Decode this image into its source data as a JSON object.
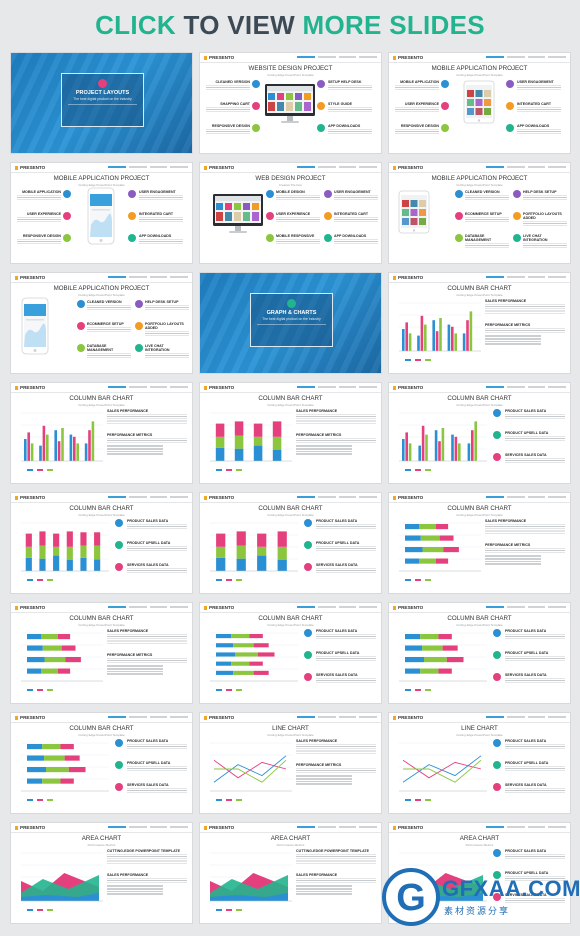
{
  "header": {
    "part1": "CLICK",
    "part2": "TO VIEW",
    "part3": "MORE SLIDES"
  },
  "brand": "PRESENTO",
  "colors": {
    "green": "#22b48e",
    "blue": "#2b8fd3",
    "pink": "#e5407e",
    "lime": "#8cc63f",
    "purple": "#8a5cc2",
    "orange": "#f39c24",
    "dark": "#3c4a55"
  },
  "slides": [
    {
      "type": "cover",
      "title": "PROJECT LAYOUTS",
      "subtitle": "The best digital product on the industry",
      "icon_color": "#e5407e"
    },
    {
      "type": "devices",
      "title": "WEBSITE DESIGN PROJECT",
      "subtitle": "Cutting Edge PowerPoint Template",
      "device": "monitor",
      "left": [
        "CLEANED VERSION",
        "SHAPPING CART",
        "RESPONSIVE DESIGN"
      ],
      "right": [
        "SETUP HELP DESK",
        "STYLE GUIDE",
        "APP DOWNLOADS"
      ]
    },
    {
      "type": "devices",
      "title": "MOBILE APPLICATION PROJECT",
      "subtitle": "Cutting Edge PowerPoint Template",
      "device": "tablet",
      "left": [
        "MOBILE APPLICATION",
        "USER EXPERIENCE",
        "RESPONSIVE DESIGN"
      ],
      "right": [
        "USER ENGAGEMENT",
        "INTEGRATED CART",
        "APP DOWNLOADS"
      ]
    },
    {
      "type": "devices",
      "title": "MOBILE APPLICATION PROJECT",
      "subtitle": "Cutting Edge PowerPoint Template",
      "device": "phone-center",
      "left": [
        "MOBILE APPLICATION",
        "USER EXPERIENCE",
        "RESPONSIVE DESIGN"
      ],
      "right": [
        "USER ENGAGEMENT",
        "INTEGRATED CART",
        "APP DOWNLOADS"
      ]
    },
    {
      "type": "devices",
      "title": "WEB DESIGN PROJECT",
      "subtitle": "Creative Tile Item",
      "device": "monitor-left",
      "left": [
        "MOBILE DESIGN",
        "USER EXPERIENCE",
        "MOBILE RESPONSIVE"
      ],
      "right": [
        "USER ENGAGEMENT",
        "INTEGRATED CART",
        "APP DOWNLOADS"
      ]
    },
    {
      "type": "devices",
      "title": "MOBILE APPLICATION PROJECT",
      "subtitle": "Cutting Edge PowerPoint Template",
      "device": "tablet-left",
      "left": [
        "CLEANED VERSION",
        "ECOMMERCE SETUP",
        "DATABASE MANAGEMENT"
      ],
      "right": [
        "HELP DESK SETUP",
        "PORTFOLIO LAYOUTS ADDED",
        "LIVE CHAT INTEGRATION"
      ]
    },
    {
      "type": "devices",
      "title": "MOBILE APPLICATION PROJECT",
      "subtitle": "Cutting Edge PowerPoint Template",
      "device": "phone-left",
      "left": [
        "CLEANED VERSION",
        "ECOMMERCE SETUP",
        "DATABASE MANAGEMENT"
      ],
      "right": [
        "HELP DESK SETUP",
        "PORTFOLIO LAYOUTS ADDED",
        "LIVE CHAT INTEGRATION"
      ]
    },
    {
      "type": "cover",
      "title": "GRAPH & CHARTS",
      "subtitle": "The best digital product on the industry",
      "icon_color": "#22b48e"
    },
    {
      "type": "chart",
      "title": "COLUMN BAR CHART",
      "subtitle": "Cutting Edge PowerPoint Template",
      "chart": "grouped",
      "side": "right",
      "heads": [
        "SALES PERFORMANCE",
        "PERFORMANCE METRICS"
      ]
    },
    {
      "type": "chart",
      "title": "COLUMN BAR CHART",
      "subtitle": "Cutting Edge PowerPoint Template",
      "chart": "grouped",
      "side": "right",
      "heads": [
        "SALES PERFORMANCE",
        "PERFORMANCE METRICS"
      ]
    },
    {
      "type": "chart",
      "title": "COLUMN BAR CHART",
      "subtitle": "Cutting Edge PowerPoint Template",
      "chart": "stacked",
      "side": "right",
      "heads": [
        "SALES PERFORMANCE",
        "PERFORMANCE METRICS"
      ]
    },
    {
      "type": "chart",
      "title": "COLUMN BAR CHART",
      "subtitle": "Cutting Edge PowerPoint Template",
      "chart": "grouped",
      "side": "icons",
      "heads": [
        "PRODUCT SALES DATA",
        "PRODUCT UPSELL DATA",
        "SERVICES SALES DATA"
      ]
    },
    {
      "type": "chart",
      "title": "COLUMN BAR CHART",
      "subtitle": "Cutting Edge PowerPoint Template",
      "chart": "stacked4",
      "side": "icons",
      "heads": [
        "PRODUCT SALES DATA",
        "PRODUCT UPSELL DATA",
        "SERVICES SALES DATA"
      ]
    },
    {
      "type": "chart",
      "title": "COLUMN BAR CHART",
      "subtitle": "Cutting Edge PowerPoint Template",
      "chart": "stacked",
      "side": "icons",
      "heads": [
        "PRODUCT SALES DATA",
        "PRODUCT UPSELL DATA",
        "SERVICES SALES DATA"
      ]
    },
    {
      "type": "chart",
      "title": "COLUMN BAR CHART",
      "subtitle": "Cutting Edge PowerPoint Template",
      "chart": "hbar",
      "side": "right",
      "heads": [
        "SALES PERFORMANCE",
        "PERFORMANCE METRICS"
      ]
    },
    {
      "type": "chart",
      "title": "COLUMN BAR CHART",
      "subtitle": "Cutting Edge PowerPoint Template",
      "chart": "hbar",
      "side": "right",
      "heads": [
        "SALES PERFORMANCE",
        "PERFORMANCE METRICS"
      ]
    },
    {
      "type": "chart",
      "title": "COLUMN BAR CHART",
      "subtitle": "Cutting Edge PowerPoint Template",
      "chart": "hbar2",
      "side": "icons",
      "heads": [
        "PRODUCT SALES DATA",
        "PRODUCT UPSELL DATA",
        "SERVICES SALES DATA"
      ]
    },
    {
      "type": "chart",
      "title": "COLUMN BAR CHART",
      "subtitle": "Cutting Edge PowerPoint Template",
      "chart": "hbar",
      "side": "icons",
      "heads": [
        "PRODUCT SALES DATA",
        "PRODUCT UPSELL DATA",
        "SERVICES SALES DATA"
      ]
    },
    {
      "type": "chart",
      "title": "COLUMN BAR CHART",
      "subtitle": "Cutting Edge PowerPoint Template",
      "chart": "hbar",
      "side": "icons",
      "heads": [
        "PRODUCT SALES DATA",
        "PRODUCT UPSELL DATA",
        "SERVICES SALES DATA"
      ]
    },
    {
      "type": "chart",
      "title": "LINE CHART",
      "subtitle": "Cutting Edge PowerPoint Template",
      "chart": "line",
      "side": "right",
      "heads": [
        "SALES PERFORMANCE",
        "PERFORMANCE METRICS"
      ]
    },
    {
      "type": "chart",
      "title": "LINE CHART",
      "subtitle": "Cutting Edge PowerPoint Template",
      "chart": "line",
      "side": "icons",
      "heads": [
        "PRODUCT SALES DATA",
        "PRODUCT UPSELL DATA",
        "SERVICES SALES DATA"
      ]
    },
    {
      "type": "chart",
      "title": "AREA CHART",
      "subtitle": "Performance Metrics",
      "chart": "area",
      "side": "right",
      "heads": [
        "CUTTING-EDGE POWERPOINT TEMPLATE",
        "SALES PERFORMANCE"
      ]
    },
    {
      "type": "chart",
      "title": "AREA CHART",
      "subtitle": "Performance Metrics",
      "chart": "area",
      "side": "right",
      "heads": [
        "CUTTING-EDGE POWERPOINT TEMPLATE",
        "SALES PERFORMANCE"
      ]
    },
    {
      "type": "chart",
      "title": "AREA CHART",
      "subtitle": "Performance Metrics",
      "chart": "area",
      "side": "icons",
      "heads": [
        "PRODUCT SALES DATA",
        "PRODUCT UPSELL DATA",
        "SERVICES SALES DATA"
      ]
    }
  ],
  "watermark": {
    "letter": "G",
    "text": "GFXAA.COM",
    "sub": "素材资源分享"
  }
}
